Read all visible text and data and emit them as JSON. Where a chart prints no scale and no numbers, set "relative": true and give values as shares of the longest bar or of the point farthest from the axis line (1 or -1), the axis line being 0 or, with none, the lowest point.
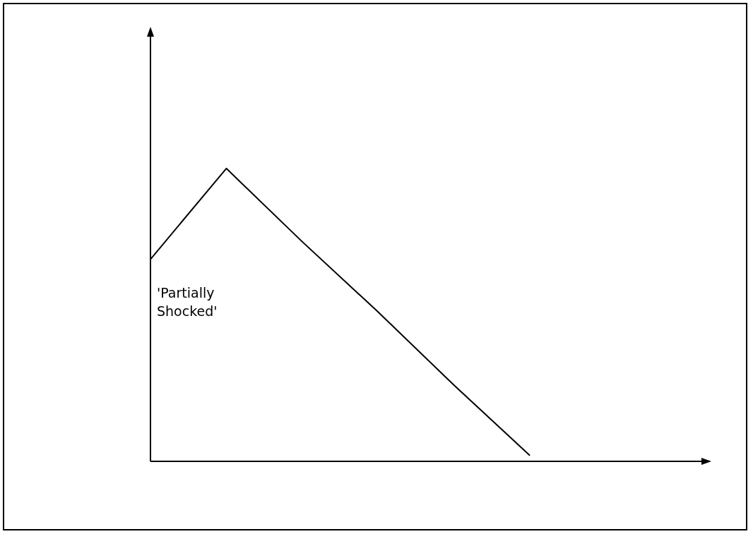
{
  "chart_data": {
    "type": "line",
    "relative": true,
    "categories": [
      null,
      null,
      null,
      null,
      null,
      null,
      null,
      null
    ],
    "series": [
      {
        "color": "#000000",
        "values": [
          0.69,
          1,
          0.75,
          0.51,
          0.26,
          0.02,
          null,
          null
        ]
      }
    ],
    "annotations": [
      "'Partially Shocked'"
    ],
    "grid": false,
    "legend": false,
    "marker": "none",
    "line_style": "solid",
    "tick_labels": false
  }
}
